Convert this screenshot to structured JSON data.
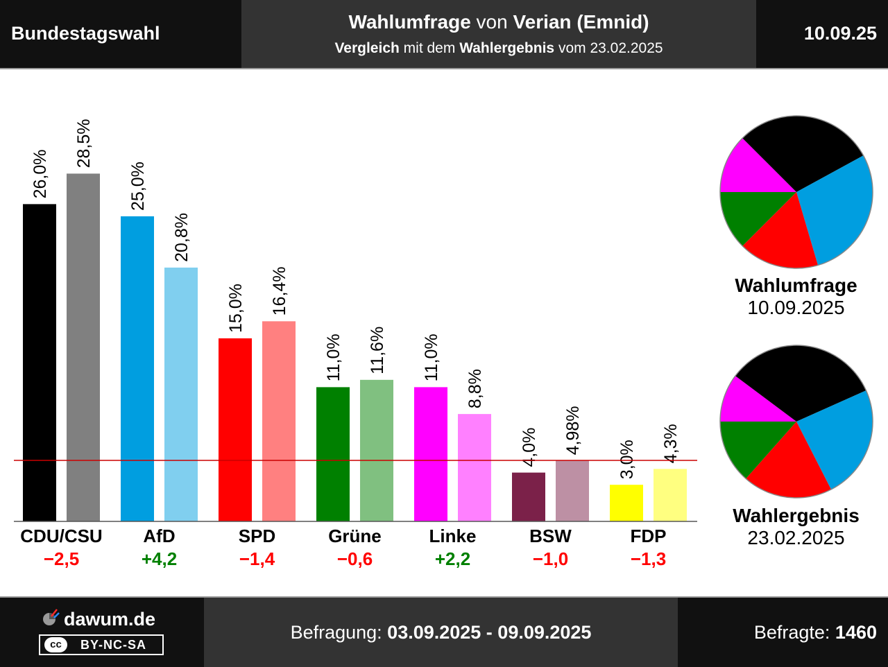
{
  "header": {
    "left_title": "Bundestagswahl",
    "title_bold_1": "Wahlumfrage",
    "title_plain_1": " von ",
    "title_bold_2": "Verian (Emnid)",
    "subtitle_bold_1": "Vergleich",
    "subtitle_plain_1": " mit dem ",
    "subtitle_bold_2": "Wahlergebnis",
    "subtitle_plain_2": " vom 23.02.2025",
    "date": "10.09.25"
  },
  "chart_data": {
    "type": "bar",
    "categories": [
      "CDU/CSU",
      "AfD",
      "SPD",
      "Grüne",
      "Linke",
      "BSW",
      "FDP"
    ],
    "series": [
      {
        "values": [
          26.0,
          25.0,
          15.0,
          11.0,
          11.0,
          4.0,
          3.0
        ],
        "labels": [
          "26,0%",
          "25,0%",
          "15,0%",
          "11,0%",
          "11,0%",
          "4,0%",
          "3,0%"
        ],
        "colors": [
          "#000000",
          "#009ee0",
          "#ff0000",
          "#008000",
          "#ff00ff",
          "#7b2149",
          "#ffff00"
        ]
      },
      {
        "values": [
          28.5,
          20.8,
          16.4,
          11.6,
          8.8,
          4.98,
          4.3
        ],
        "labels": [
          "28,5%",
          "20,8%",
          "16,4%",
          "11,6%",
          "8,8%",
          "4,98%",
          "4,3%"
        ],
        "colors": [
          "#808080",
          "#80cfef",
          "#ff8080",
          "#80c080",
          "#ff80ff",
          "#bd90a4",
          "#ffff80"
        ]
      }
    ],
    "changes": [
      "−2,5",
      "+4,2",
      "−1,4",
      "−0,6",
      "+2,2",
      "−1,0",
      "−1,3"
    ],
    "change_colors": [
      "#ff0000",
      "#008000",
      "#ff0000",
      "#ff0000",
      "#008000",
      "#ff0000",
      "#ff0000"
    ],
    "threshold": 5,
    "threshold_color": "#cc0000",
    "ylim": [
      0,
      30
    ],
    "grid": false
  },
  "pies": [
    {
      "title": "Wahlumfrage",
      "date": "10.09.2025",
      "slices": [
        {
          "party": "Linke",
          "value": 11.0,
          "color": "#ff00ff"
        },
        {
          "party": "CDU/CSU",
          "value": 26.0,
          "color": "#000000"
        },
        {
          "party": "AfD",
          "value": 25.0,
          "color": "#009ee0"
        },
        {
          "party": "SPD",
          "value": 15.0,
          "color": "#ff0000"
        },
        {
          "party": "Grüne",
          "value": 11.0,
          "color": "#008000"
        }
      ]
    },
    {
      "title": "Wahlergebnis",
      "date": "23.02.2025",
      "slices": [
        {
          "party": "Linke",
          "value": 8.8,
          "color": "#ff00ff"
        },
        {
          "party": "CDU/CSU",
          "value": 28.5,
          "color": "#000000"
        },
        {
          "party": "AfD",
          "value": 20.8,
          "color": "#009ee0"
        },
        {
          "party": "SPD",
          "value": 16.4,
          "color": "#ff0000"
        },
        {
          "party": "Grüne",
          "value": 11.6,
          "color": "#008000"
        }
      ]
    }
  ],
  "footer": {
    "site": "dawum.de",
    "license": "BY-NC-SA",
    "license_badge": "cc",
    "befragung_label": "Befragung: ",
    "befragung_value": "03.09.2025 - 09.09.2025",
    "befragte_label": "Befragte: ",
    "befragte_value": "1460"
  }
}
